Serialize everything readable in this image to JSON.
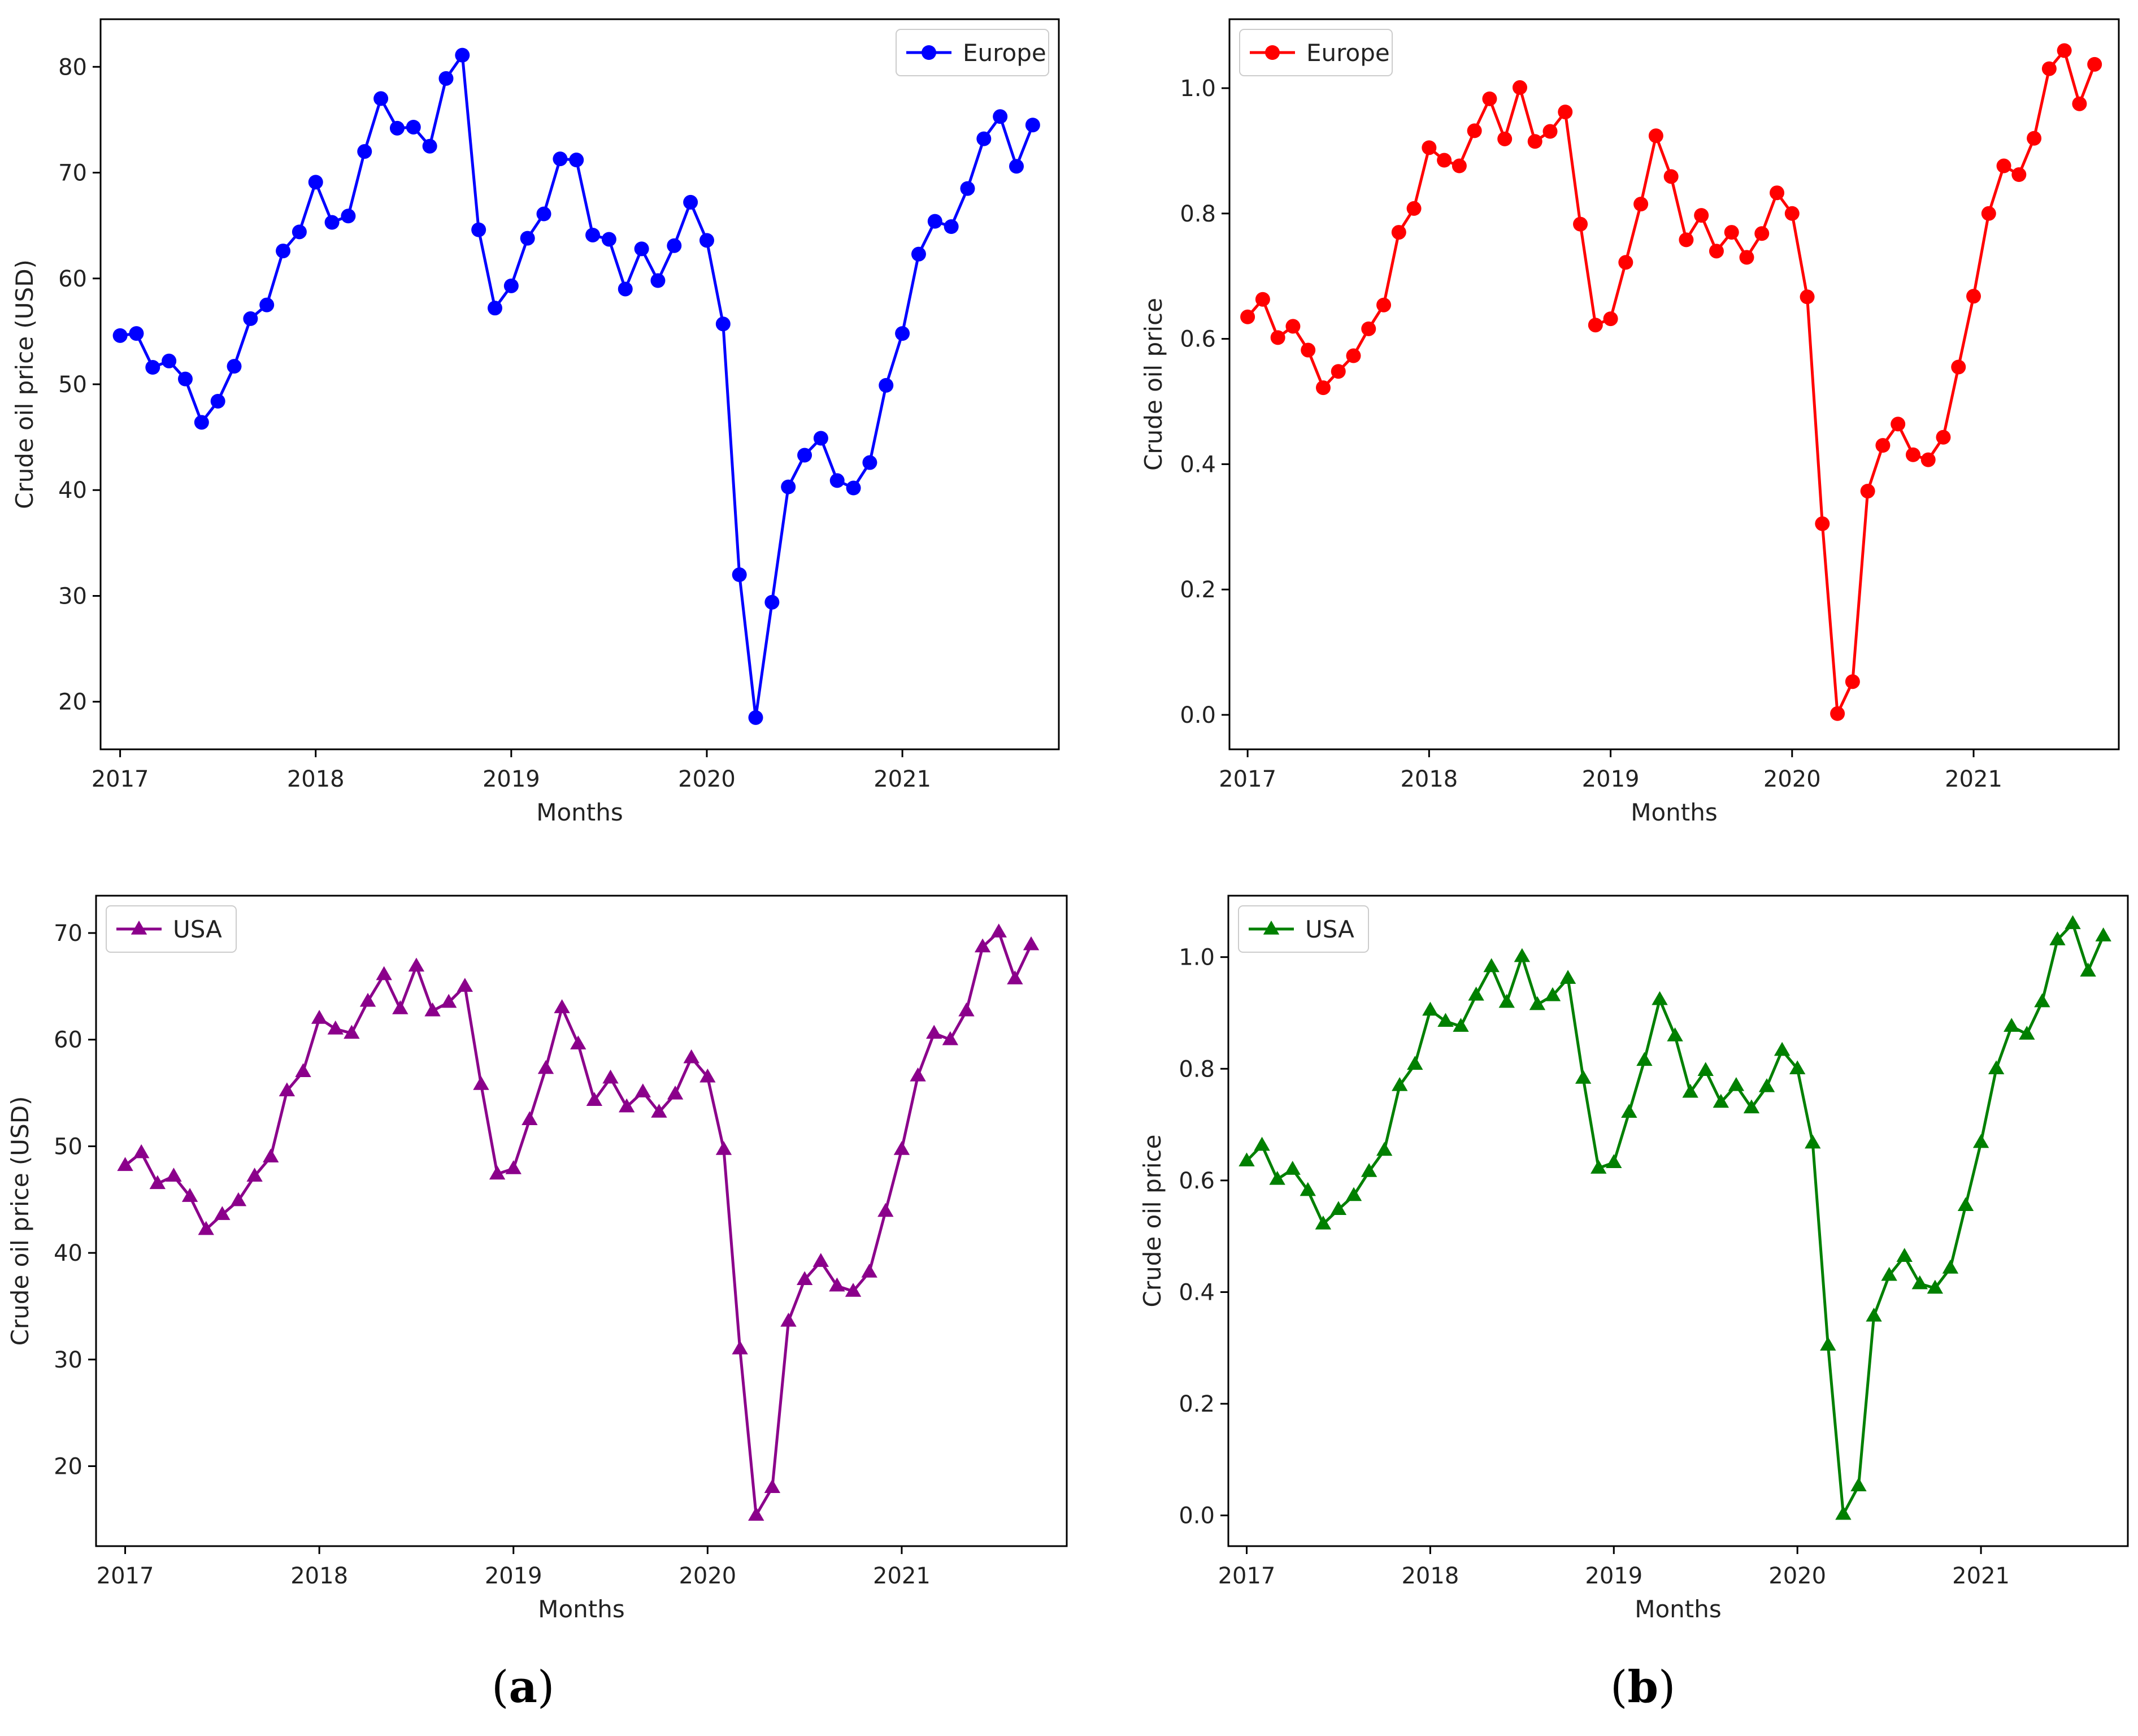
{
  "chart_data": [
    {
      "type": "line",
      "xlabel": "Months",
      "ylabel": "Crude oil price (USD)",
      "xlim": [
        2016.9,
        2021.8
      ],
      "ylim": [
        15.5,
        84.5
      ],
      "xticks": [
        2017,
        2018,
        2019,
        2020,
        2021
      ],
      "yticks": [
        20,
        30,
        40,
        50,
        60,
        70,
        80
      ],
      "legend_position": "top-right",
      "marker": "circle",
      "series": [
        {
          "name": "Europe",
          "color": "#0000ff",
          "values": [
            54.6,
            54.8,
            51.6,
            52.2,
            50.5,
            46.4,
            48.4,
            51.7,
            56.2,
            57.5,
            62.6,
            64.4,
            69.1,
            65.3,
            65.9,
            72.0,
            77.0,
            74.2,
            74.3,
            72.5,
            78.9,
            81.1,
            64.6,
            57.2,
            59.3,
            63.8,
            66.1,
            71.3,
            71.2,
            64.1,
            63.7,
            59.0,
            62.8,
            59.8,
            63.1,
            67.2,
            63.6,
            55.7,
            32.0,
            18.5,
            29.4,
            40.3,
            43.3,
            44.9,
            40.9,
            40.2,
            42.6,
            49.9,
            54.8,
            62.3,
            65.4,
            64.9,
            68.5,
            73.2,
            75.3,
            70.6,
            74.5
          ]
        }
      ]
    },
    {
      "type": "line",
      "xlabel": "Months",
      "ylabel": "Crude oil price",
      "xlim": [
        2016.9,
        2021.8
      ],
      "ylim": [
        -0.055,
        1.11
      ],
      "xticks": [
        2017,
        2018,
        2019,
        2020,
        2021
      ],
      "yticks": [
        "0.0",
        "0.2",
        "0.4",
        "0.6",
        "0.8",
        "1.0"
      ],
      "legend_position": "top-left",
      "marker": "circle",
      "series": [
        {
          "name": "Europe",
          "color": "#ff0000",
          "values": [
            0.635,
            0.663,
            0.602,
            0.62,
            0.582,
            0.522,
            0.548,
            0.573,
            0.616,
            0.654,
            0.77,
            0.808,
            0.905,
            0.885,
            0.876,
            0.932,
            0.983,
            0.919,
            1.001,
            0.915,
            0.931,
            0.962,
            0.783,
            0.622,
            0.632,
            0.722,
            0.815,
            0.924,
            0.859,
            0.758,
            0.797,
            0.74,
            0.77,
            0.73,
            0.768,
            0.833,
            0.8,
            0.667,
            0.305,
            0.002,
            0.053,
            0.357,
            0.43,
            0.464,
            0.415,
            0.407,
            0.443,
            0.555,
            0.668,
            0.8,
            0.876,
            0.862,
            0.92,
            1.031,
            1.06,
            0.975,
            1.038
          ]
        }
      ]
    },
    {
      "type": "line",
      "xlabel": "Months",
      "ylabel": "Crude oil price (USD)",
      "xlim": [
        2016.85,
        2021.85
      ],
      "ylim": [
        12.5,
        73.5
      ],
      "xticks": [
        2017,
        2018,
        2019,
        2020,
        2021
      ],
      "yticks": [
        20,
        30,
        40,
        50,
        60,
        70
      ],
      "legend_position": "top-left",
      "marker": "triangle",
      "series": [
        {
          "name": "USA",
          "color": "#8b008b",
          "values": [
            48.2,
            49.4,
            46.5,
            47.2,
            45.3,
            42.2,
            43.6,
            44.9,
            47.2,
            49.0,
            55.2,
            57.0,
            62.0,
            61.0,
            60.6,
            63.6,
            66.1,
            62.9,
            66.9,
            62.7,
            63.5,
            65.0,
            55.8,
            47.4,
            47.9,
            52.5,
            57.3,
            63.0,
            59.6,
            54.3,
            56.4,
            53.7,
            55.1,
            53.2,
            54.9,
            58.3,
            56.5,
            49.7,
            31.0,
            15.4,
            18.0,
            33.6,
            37.5,
            39.2,
            36.9,
            36.4,
            38.2,
            43.9,
            49.7,
            56.6,
            60.6,
            60.0,
            62.7,
            68.7,
            70.1,
            65.7,
            68.9
          ]
        }
      ]
    },
    {
      "type": "line",
      "xlabel": "Months",
      "ylabel": "Crude oil price",
      "xlim": [
        2016.9,
        2021.8
      ],
      "ylim": [
        -0.055,
        1.11
      ],
      "xticks": [
        2017,
        2018,
        2019,
        2020,
        2021
      ],
      "yticks": [
        "0.0",
        "0.2",
        "0.4",
        "0.6",
        "0.8",
        "1.0"
      ],
      "legend_position": "top-left",
      "marker": "triangle",
      "series": [
        {
          "name": "USA",
          "color": "#008000",
          "values": [
            0.635,
            0.663,
            0.602,
            0.62,
            0.582,
            0.522,
            0.548,
            0.573,
            0.616,
            0.654,
            0.77,
            0.808,
            0.905,
            0.885,
            0.876,
            0.932,
            0.983,
            0.919,
            1.001,
            0.915,
            0.931,
            0.962,
            0.783,
            0.622,
            0.632,
            0.722,
            0.815,
            0.924,
            0.859,
            0.758,
            0.797,
            0.74,
            0.77,
            0.73,
            0.768,
            0.833,
            0.8,
            0.667,
            0.305,
            0.002,
            0.053,
            0.357,
            0.43,
            0.464,
            0.415,
            0.407,
            0.443,
            0.555,
            0.668,
            0.8,
            0.876,
            0.862,
            0.92,
            1.031,
            1.06,
            0.975,
            1.038
          ]
        }
      ]
    }
  ],
  "panel_labels": [
    {
      "open": "(",
      "letter": "a",
      "close": ")"
    },
    {
      "open": "(",
      "letter": "b",
      "close": ")"
    }
  ]
}
